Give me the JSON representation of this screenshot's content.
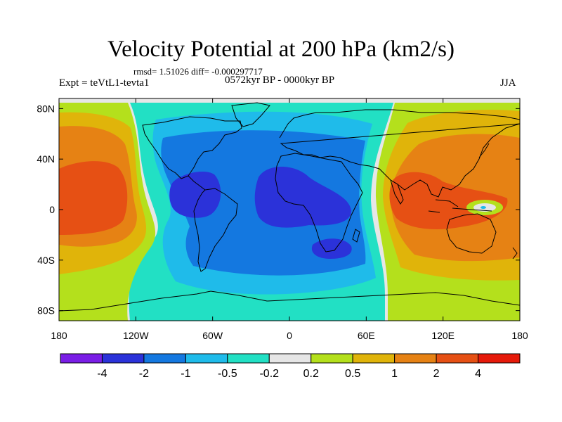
{
  "header": {
    "title": "Velocity Potential at 200 hPa (km2/s)",
    "stats": "rmsd= 1.51026 diff= -0.000297717",
    "left_label": "Expt = teVtL1-tevta1",
    "center_label": "0572kyr BP - 0000kyr BP",
    "right_label": "JJA"
  },
  "axes": {
    "lat_ticks": [
      {
        "value": 80,
        "label": "80N"
      },
      {
        "value": 40,
        "label": "40N"
      },
      {
        "value": 0,
        "label": "0"
      },
      {
        "value": -40,
        "label": "40S"
      },
      {
        "value": -80,
        "label": "80S"
      }
    ],
    "lon_ticks": [
      {
        "value": -180,
        "label": "180"
      },
      {
        "value": -120,
        "label": "120W"
      },
      {
        "value": -60,
        "label": "60W"
      },
      {
        "value": 0,
        "label": "0"
      },
      {
        "value": 60,
        "label": "60E"
      },
      {
        "value": 120,
        "label": "120E"
      },
      {
        "value": 180,
        "label": "180"
      }
    ]
  },
  "colorbar": {
    "colors": [
      "#7a1ee6",
      "#2b32d9",
      "#1478e0",
      "#1fbbea",
      "#22e0c4",
      "#e6e6e6",
      "#b4e01c",
      "#e0b40a",
      "#e68214",
      "#e65014",
      "#e61a0a"
    ],
    "labels": [
      "-4",
      "-2",
      "-1",
      "-0.5",
      "-0.2",
      "0.2",
      "0.5",
      "1",
      "2",
      "4"
    ]
  },
  "map_colors": {
    "neg_weak": "#22e0c4",
    "neg_mid": "#1fbbea",
    "neg_strong": "#1478e0",
    "neg_max": "#2b32d9",
    "neutral": "#e6e6e6",
    "pos_weak": "#b4e01c",
    "pos_mid": "#e0b40a",
    "pos_strong": "#e68214",
    "pos_max": "#e65014"
  }
}
